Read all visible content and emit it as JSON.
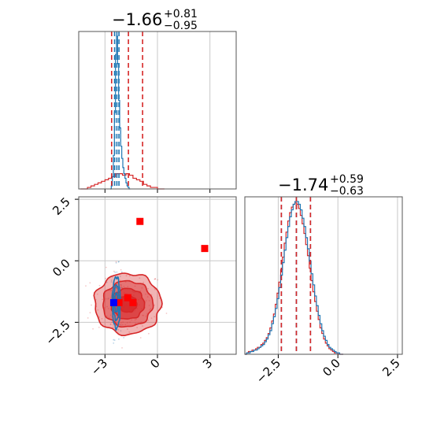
{
  "chart_data": {
    "type": "corner",
    "colors": {
      "series_a": "#1f77b4",
      "series_b": "#d62728",
      "marker_a": "#0000ff",
      "marker_b": "#ff0000"
    },
    "panels": {
      "hist_1": {
        "title": {
          "median": "−1.66",
          "plus": "+0.81",
          "minus": "−0.95"
        },
        "xlim": [
          -4.5,
          4.5
        ],
        "grid_x": [
          -3,
          0,
          3
        ],
        "series_a_quantiles": [
          -2.45,
          -2.32,
          -2.2
        ],
        "series_b_quantiles": [
          -2.62,
          -1.66,
          -0.85
        ],
        "series_a_bins": {
          "start": -2.7,
          "width": 0.06,
          "counts": [
            0,
            2,
            8,
            22,
            50,
            88,
            100,
            82,
            58,
            40,
            28,
            20,
            14,
            10,
            7,
            4,
            2,
            1,
            0
          ]
        },
        "series_b_bins": {
          "start": -4.4,
          "width": 0.2,
          "counts": [
            0,
            0,
            1,
            2,
            3,
            4,
            5,
            6,
            7,
            8,
            10,
            10,
            9,
            10,
            9,
            7,
            6,
            5,
            3,
            2,
            1,
            1,
            0,
            0
          ]
        }
      },
      "hist_2": {
        "title": {
          "median": "−1.74",
          "plus": "+0.59",
          "minus": "−0.63"
        },
        "xlim": [
          -3.9,
          2.7
        ],
        "x_ticks": [
          -2.5,
          0.0,
          2.5
        ],
        "x_tick_labels": [
          "−2.5",
          "0.0",
          "2.5"
        ],
        "grid_x": [
          -2.5,
          0.0,
          2.5
        ],
        "series_a_quantiles": [
          -2.37,
          -1.74,
          -1.15
        ],
        "series_b_quantiles": [
          -2.37,
          -1.74,
          -1.15
        ],
        "series_a_bins": {
          "start": -3.9,
          "width": 0.075,
          "counts": [
            0,
            1,
            1,
            2,
            2,
            3,
            3,
            4,
            5,
            6,
            7,
            9,
            11,
            14,
            17,
            22,
            27,
            33,
            40,
            48,
            57,
            66,
            75,
            84,
            92,
            99,
            104,
            108,
            110,
            110,
            108,
            104,
            98,
            92,
            84,
            76,
            67,
            58,
            50,
            42,
            35,
            28,
            22,
            17,
            13,
            10,
            7,
            5,
            4,
            3,
            2,
            1,
            1,
            0,
            0
          ]
        },
        "series_b_bins": {
          "start": -3.9,
          "width": 0.075,
          "counts": [
            0,
            1,
            2,
            2,
            3,
            3,
            4,
            5,
            5,
            7,
            8,
            10,
            12,
            15,
            19,
            24,
            29,
            36,
            44,
            52,
            61,
            70,
            80,
            88,
            96,
            102,
            106,
            108,
            109,
            108,
            105,
            100,
            94,
            87,
            79,
            71,
            62,
            53,
            45,
            38,
            31,
            25,
            19,
            15,
            11,
            8,
            6,
            4,
            3,
            2,
            1,
            1,
            0,
            0,
            0
          ]
        }
      },
      "scatter_2d": {
        "xlim": [
          -4.5,
          4.5
        ],
        "ylim": [
          -3.8,
          2.6
        ],
        "x_ticks": [
          -3,
          0,
          3
        ],
        "x_tick_labels": [
          "−3",
          "0",
          "3"
        ],
        "y_ticks": [
          -2.5,
          0.0,
          2.5
        ],
        "y_tick_labels": [
          "−2.5",
          "0.0",
          "2.5"
        ],
        "grid_x": [
          -3,
          0,
          3
        ],
        "grid_y": [
          -2.5,
          0.0,
          2.5
        ],
        "series_a_center": [
          -2.35,
          -1.7
        ],
        "series_a_sigma": [
          0.12,
          0.55
        ],
        "series_b_center": [
          -1.7,
          -1.75
        ],
        "series_b_sigma": [
          0.95,
          0.62
        ],
        "markers_b": [
          [
            -1.0,
            1.6
          ],
          [
            2.7,
            0.5
          ],
          [
            -1.7,
            -1.5
          ],
          [
            -1.4,
            -1.7
          ],
          [
            -2.2,
            -1.7
          ]
        ],
        "markers_a": [
          [
            -2.5,
            -1.7
          ]
        ]
      }
    }
  }
}
